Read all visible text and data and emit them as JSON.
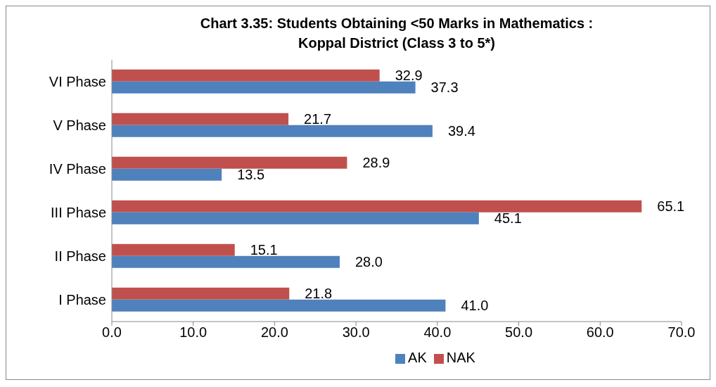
{
  "chart_data": {
    "type": "bar",
    "orientation": "horizontal",
    "title": "Chart 3.35: Students  Obtaining <50 Marks in Mathematics :\nKoppal District (Class 3 to 5*)",
    "categories": [
      "VI Phase",
      "V Phase",
      "IV Phase",
      "III Phase",
      "II Phase",
      "I Phase"
    ],
    "series": [
      {
        "name": "NAK",
        "color": "#c0504d",
        "values": [
          32.9,
          21.7,
          28.9,
          65.1,
          15.1,
          21.8
        ],
        "value_labels": [
          "32.9",
          "21.7",
          "28.9",
          "65.1",
          "15.1",
          "21.8"
        ]
      },
      {
        "name": "AK",
        "color": "#4f81bd",
        "values": [
          37.3,
          39.4,
          13.5,
          45.1,
          28.0,
          41.0
        ],
        "value_labels": [
          "37.3",
          "39.4",
          "13.5",
          "45.1",
          "28.0",
          "41.0"
        ]
      }
    ],
    "xlim": [
      0,
      70
    ],
    "xticks": [
      {
        "value": 0,
        "label": "0.0"
      },
      {
        "value": 10,
        "label": "10.0"
      },
      {
        "value": 20,
        "label": "20.0"
      },
      {
        "value": 30,
        "label": "30.0"
      },
      {
        "value": 40,
        "label": "40.0"
      },
      {
        "value": 50,
        "label": "50.0"
      },
      {
        "value": 60,
        "label": "60.0"
      },
      {
        "value": 70,
        "label": "70.0"
      }
    ],
    "grid": false,
    "legend": "bottom"
  }
}
